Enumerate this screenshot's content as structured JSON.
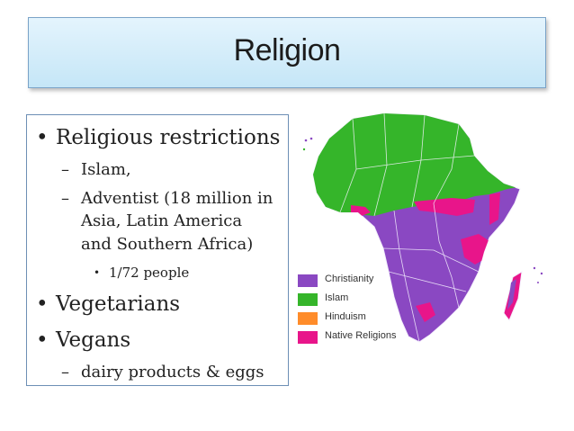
{
  "slide": {
    "title": "Religion",
    "bullets": {
      "b1": "Religious restrictions",
      "b1_sub1": "Islam,",
      "b1_sub2_line1": "Adventist (18 million in",
      "b1_sub2_line2": "Asia, Latin America",
      "b1_sub2_line3": "and Southern Africa)",
      "b1_sub2_sub1": "1/72 people",
      "b2": "Vegetarians",
      "b3": "Vegans",
      "b3_sub1": "dairy products & eggs"
    },
    "bullet_glyph": "•",
    "dash_glyph": "–"
  },
  "map": {
    "subject": "Africa religion map",
    "colors": {
      "christianity": "#8a48c2",
      "islam": "#35b52a",
      "hinduism": "#ff8c2a",
      "native": "#e8158a"
    },
    "legend": [
      {
        "label": "Christianity",
        "color": "#8a48c2"
      },
      {
        "label": "Islam",
        "color": "#35b52a"
      },
      {
        "label": "Hinduism",
        "color": "#ff8c2a"
      },
      {
        "label": "Native Religions",
        "color": "#e8158a"
      }
    ]
  }
}
